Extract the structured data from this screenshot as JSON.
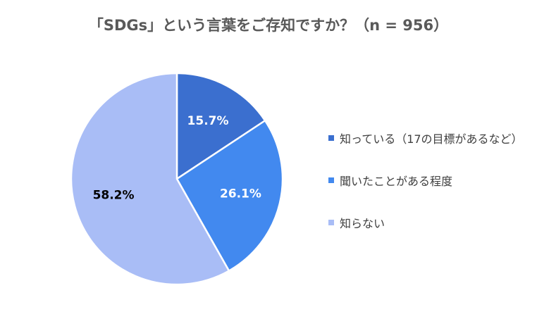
{
  "chart_data": {
    "type": "pie",
    "title": "「SDGs」という言葉をご存知ですか？（n = 956）",
    "categories": [
      "知っている（17の目標があるなど）",
      "聞いたことがある程度",
      "知らない"
    ],
    "values": [
      15.7,
      26.1,
      58.2
    ],
    "value_labels": [
      "15.7%",
      "26.1%",
      "58.2%"
    ],
    "colors": [
      "#3b6fcf",
      "#4289ef",
      "#a9bdf6"
    ],
    "label_colors": [
      "#ffffff",
      "#ffffff",
      "#000000"
    ],
    "legend_position": "right",
    "start_angle": "12 o'clock",
    "direction": "clockwise"
  }
}
